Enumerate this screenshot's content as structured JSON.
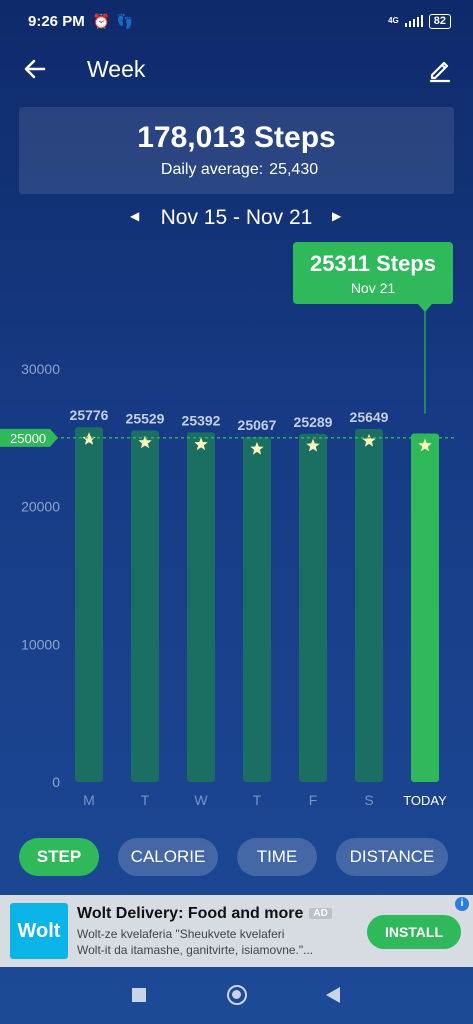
{
  "status": {
    "time": "9:26 PM",
    "network": "4G",
    "battery": "82"
  },
  "header": {
    "title": "Week"
  },
  "summary": {
    "total": "178,013 Steps",
    "avg_label": "Daily average:",
    "avg_value": "25,430"
  },
  "range": {
    "label": "Nov 15 - Nov 21"
  },
  "tooltip": {
    "value": "25311 Steps",
    "date": "Nov 21"
  },
  "chart_data": {
    "type": "bar",
    "categories": [
      "M",
      "T",
      "W",
      "T",
      "F",
      "S",
      "TODAY"
    ],
    "values": [
      25776,
      25529,
      25392,
      25067,
      25289,
      25649,
      25311
    ],
    "value_labels": [
      "25776",
      "25529",
      "25392",
      "25067",
      "25289",
      "25649",
      ""
    ],
    "ylim": [
      0,
      30000
    ],
    "yticks": [
      "0",
      "10000",
      "20000",
      "30000"
    ],
    "goal": 25000,
    "goal_label": "25000",
    "bar_color": "#1a6f62",
    "today_color": "#2fb95a",
    "star_color": "#fff6b8"
  },
  "filters": [
    "STEP",
    "CALORIE",
    "TIME",
    "DISTANCE"
  ],
  "ad": {
    "logo": "Wolt",
    "title": "Wolt Delivery: Food and more",
    "badge": "AD",
    "line1": "Wolt-ze kvelaferia \"Sheukvete kvelaferi",
    "line2": "Wolt-it da itamashe, ganitvirte, isiamovne.\"...",
    "install": "INSTALL",
    "info": "i"
  },
  "icons": {
    "back": "arrow-left-icon",
    "edit": "pencil-icon"
  }
}
